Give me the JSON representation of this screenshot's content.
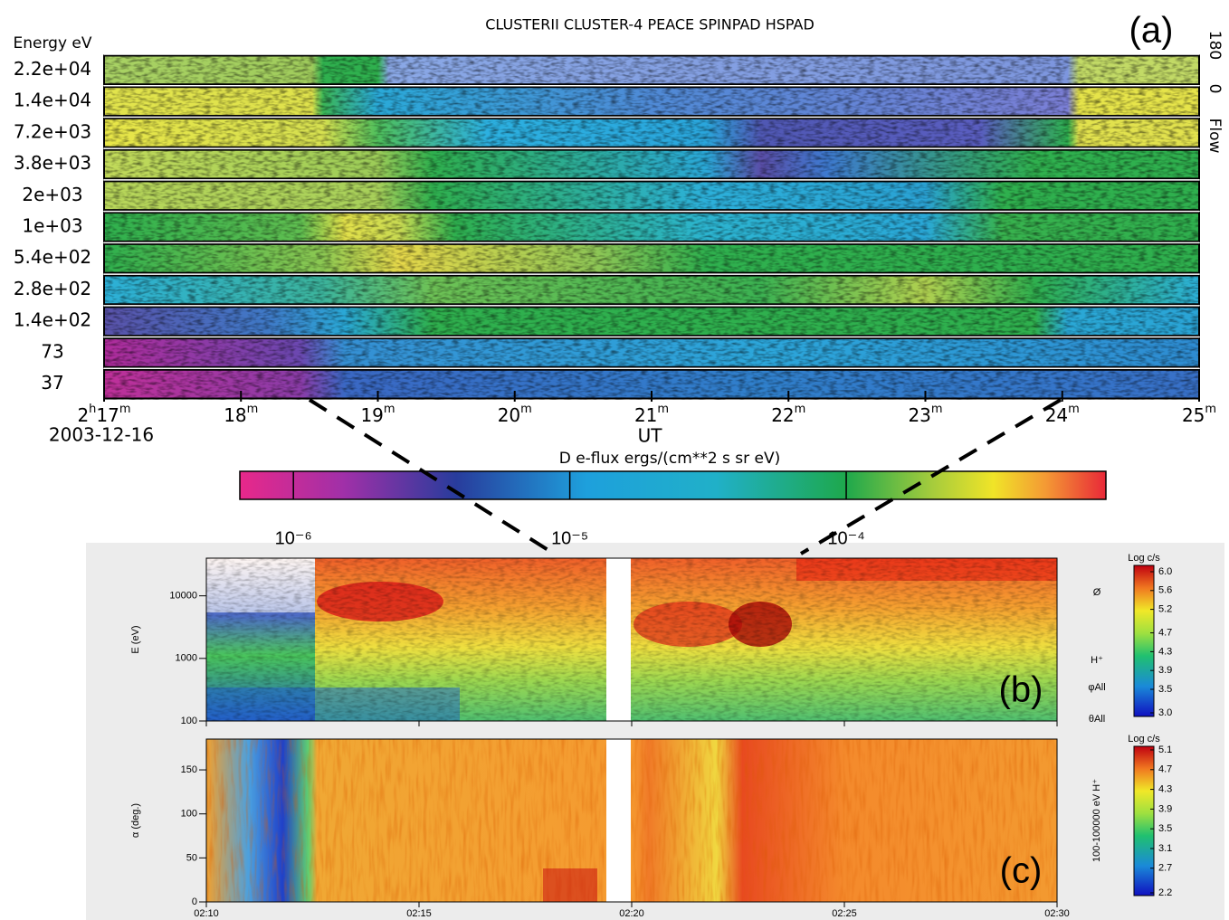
{
  "chart_data": [
    {
      "type": "spectrogram",
      "title": "CLUSTERII CLUSTER-4 PEACE SPINPAD HSPAD",
      "panel_label": "(a)",
      "y_label": "Energy eV",
      "categories": [
        "2.2e+04",
        "1.4e+04",
        "7.2e+03",
        "3.8e+03",
        "2e+03",
        "1e+03",
        "5.4e+02",
        "2.8e+02",
        "1.4e+02",
        "73",
        "37"
      ],
      "x_label": "UT",
      "date": "2003-12-16",
      "xlim": [
        17,
        25
      ],
      "xticks": [
        {
          "value": 17,
          "label": "2h17m"
        },
        {
          "value": 18,
          "label": "18m"
        },
        {
          "value": 19,
          "label": "19m"
        },
        {
          "value": 20,
          "label": "20m"
        },
        {
          "value": 21,
          "label": "21m"
        },
        {
          "value": 22,
          "label": "22m"
        },
        {
          "value": 23,
          "label": "23m"
        },
        {
          "value": 24,
          "label": "24m"
        },
        {
          "value": 25,
          "label": "25m"
        }
      ],
      "right_labels": [
        "180",
        "0",
        "Flow"
      ]
    },
    {
      "type": "colorbar",
      "title": "D e-flux ergs/(cm**2 s sr eV)",
      "log": true,
      "xlim": [
        6.4e-07,
        0.00087
      ],
      "xticks": [
        {
          "value": 1e-06,
          "label": "10⁻⁶"
        },
        {
          "value": 1e-05,
          "label": "10⁻⁵"
        },
        {
          "value": 0.0001,
          "label": "10⁻⁴"
        }
      ]
    },
    {
      "type": "spectrogram",
      "panel_label": "(b)",
      "y_label": "E (eV)",
      "log_y": true,
      "ylim": [
        100,
        40000
      ],
      "yticks": [
        100,
        1000,
        10000
      ],
      "right_labels": [
        "Ø",
        "H⁺",
        "φAll",
        "θAll"
      ],
      "colorbar": {
        "title": "Log c/s",
        "ylim": [
          3,
          6
        ],
        "yticks": [
          {
            "value": 6,
            "label": "6.0"
          },
          5.6,
          5.2,
          4.7,
          4.3,
          3.9,
          3.5,
          {
            "value": 3,
            "label": "3.0"
          }
        ]
      }
    },
    {
      "type": "spectrogram",
      "panel_label": "(c)",
      "y_label": "α (deg.)",
      "ylim": [
        0,
        185
      ],
      "yticks": [
        0,
        50,
        100,
        150
      ],
      "xlim": [
        10,
        30
      ],
      "xticks": [
        {
          "value": 10,
          "label": "02:10"
        },
        {
          "value": 15,
          "label": "02:15"
        },
        {
          "value": 20,
          "label": "02:20"
        },
        {
          "value": 25,
          "label": "02:25"
        },
        {
          "value": 30,
          "label": "02:30"
        }
      ],
      "right_label": "100-100000 eV H⁺",
      "colorbar": {
        "title": "Log c/s",
        "ylim": [
          2.2,
          5.1
        ],
        "yticks": [
          5.1,
          4.7,
          4.3,
          3.9,
          3.5,
          3.1,
          2.7,
          2.2
        ]
      }
    }
  ]
}
